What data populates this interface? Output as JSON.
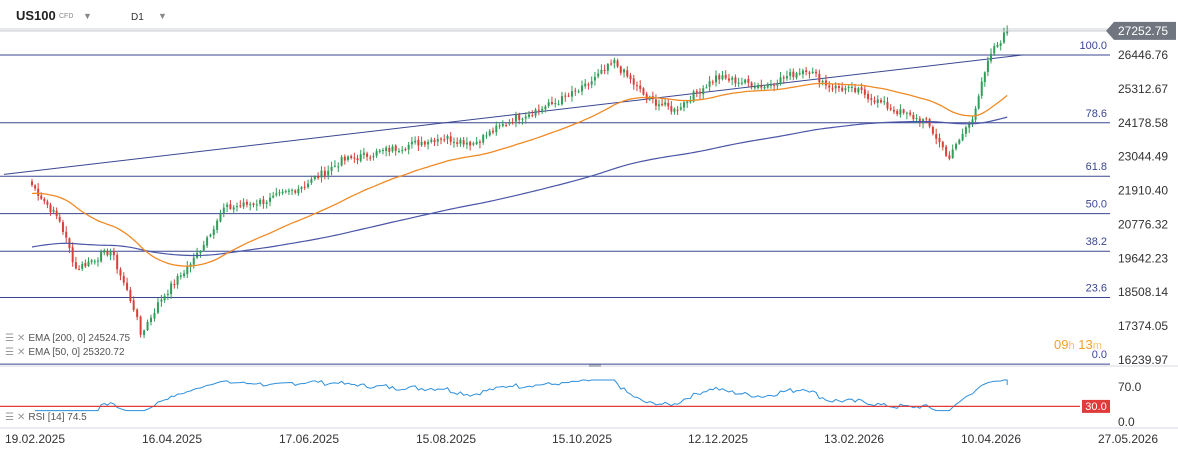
{
  "header": {
    "symbol": "US100",
    "symbol_type": "CFD",
    "timeframe": "D1"
  },
  "price_axis": {
    "labels": [
      "26446.76",
      "25312.67",
      "24178.58",
      "23044.49",
      "21910.40",
      "20776.32",
      "19642.23",
      "18508.14",
      "17374.05",
      "16239.97"
    ],
    "current_price": "27252.75"
  },
  "fibonacci": {
    "levels": [
      {
        "label": "100.0",
        "price": 26446.76
      },
      {
        "label": "78.6",
        "price": 24178.58
      },
      {
        "label": "61.8",
        "price": 22390
      },
      {
        "label": "50.0",
        "price": 21140
      },
      {
        "label": "38.2",
        "price": 19880
      },
      {
        "label": "23.6",
        "price": 18330
      },
      {
        "label": "0.0",
        "price": 16100
      }
    ]
  },
  "indicators": {
    "ema200_label": "EMA [200, 0] 24524.75",
    "ema50_label": "EMA [50, 0] 25320.72",
    "rsi_label": "RSI [14] 74.5",
    "rsi_axis_labels": [
      "70.0",
      "0.0"
    ],
    "rsi_low_level": "30.0"
  },
  "timer": {
    "hours": "09",
    "h_unit": "h",
    "minutes": "13",
    "m_unit": "m"
  },
  "x_axis": {
    "labels": [
      "19.02.2025",
      "16.04.2025",
      "17.06.2025",
      "15.08.2025",
      "15.10.2025",
      "12.12.2025",
      "13.02.2026",
      "10.04.2026",
      "27.05.2026"
    ]
  },
  "colors": {
    "up_candle": "#2e9e58",
    "down_candle": "#d8403a",
    "ema50": "#f08a24",
    "ema200": "#4a56a6",
    "fib_line": "#3a4690",
    "rsi_line": "#2d8fdc",
    "rsi_level": "#e03a3a",
    "price_badge": "#6f7680"
  },
  "chart_data": {
    "type": "candlestick",
    "x": [
      "19.02.2025",
      "16.04.2025",
      "17.06.2025",
      "15.08.2025",
      "15.10.2025",
      "12.12.2025",
      "13.02.2026",
      "10.04.2026"
    ],
    "close_path": [
      [
        "19.02.2025",
        22100
      ],
      [
        "03.03.2025",
        20900
      ],
      [
        "10.03.2025",
        19300
      ],
      [
        "25.03.2025",
        19900
      ],
      [
        "04.04.2025",
        18000
      ],
      [
        "07.04.2025",
        17100
      ],
      [
        "16.04.2025",
        18300
      ],
      [
        "30.04.2025",
        19600
      ],
      [
        "13.05.2025",
        21300
      ],
      [
        "02.06.2025",
        21600
      ],
      [
        "17.06.2025",
        22100
      ],
      [
        "03.07.2025",
        22900
      ],
      [
        "25.07.2025",
        23300
      ],
      [
        "15.08.2025",
        23700
      ],
      [
        "29.08.2025",
        23500
      ],
      [
        "15.09.2025",
        24300
      ],
      [
        "02.10.2025",
        24800
      ],
      [
        "15.10.2025",
        25300
      ],
      [
        "29.10.2025",
        26200
      ],
      [
        "12.11.2025",
        25000
      ],
      [
        "24.11.2025",
        24600
      ],
      [
        "12.12.2025",
        25700
      ],
      [
        "02.01.2026",
        25400
      ],
      [
        "20.01.2026",
        26000
      ],
      [
        "30.01.2026",
        25400
      ],
      [
        "13.02.2026",
        25200
      ],
      [
        "27.02.2026",
        24600
      ],
      [
        "13.03.2026",
        24200
      ],
      [
        "23.03.2026",
        23000
      ],
      [
        "02.04.2026",
        24400
      ],
      [
        "10.04.2026",
        26500
      ],
      [
        "17.04.2026",
        27250
      ]
    ],
    "ema50_label_value": 25320.72,
    "ema200_label_value": 24524.75,
    "rsi_last": 74.5,
    "trendline": {
      "from": [
        "19.02.2025",
        22450
      ],
      "to": [
        "24.04.2026",
        26450
      ]
    }
  }
}
